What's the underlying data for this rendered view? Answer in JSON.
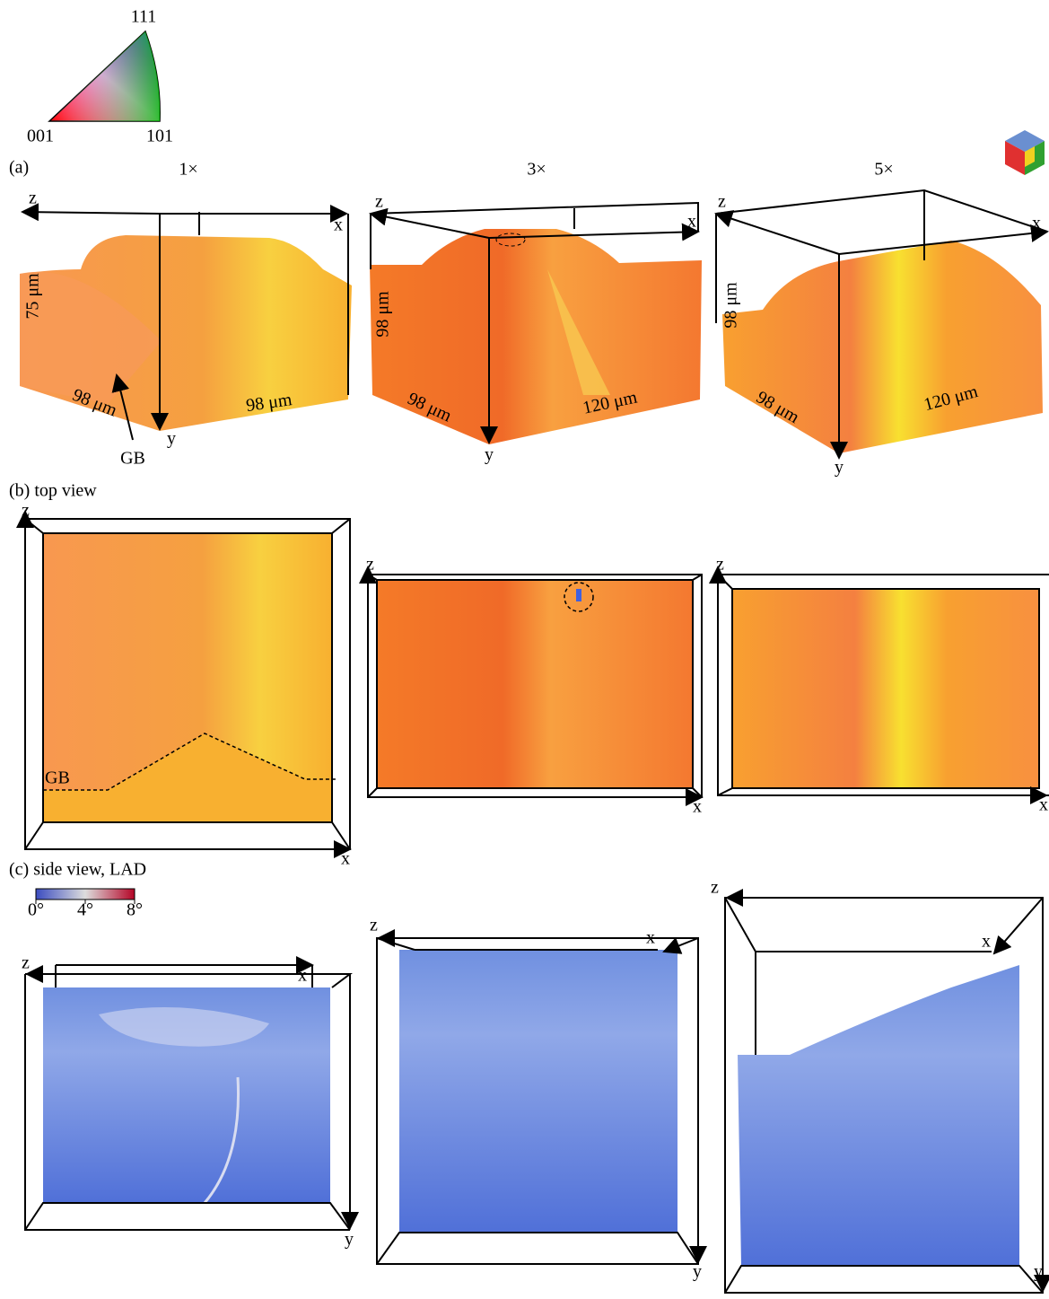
{
  "ipf_legend": {
    "corners": [
      "111",
      "001",
      "101"
    ]
  },
  "panel_a": {
    "label": "(a)",
    "columns": [
      {
        "title": "1×",
        "axes": [
          "z",
          "x",
          "y"
        ],
        "dims": [
          "75 μm",
          "98 μm",
          "98 μm"
        ],
        "annotation": "GB"
      },
      {
        "title": "3×",
        "axes": [
          "z",
          "x",
          "y"
        ],
        "dims": [
          "98 μm",
          "98 μm",
          "120 μm"
        ]
      },
      {
        "title": "5×",
        "axes": [
          "z",
          "x",
          "y"
        ],
        "dims": [
          "98 μm",
          "98 μm",
          "120 μm"
        ]
      }
    ]
  },
  "panel_b": {
    "label": "(b) top view",
    "views": [
      {
        "axes": [
          "z",
          "x"
        ],
        "annotation": "GB"
      },
      {
        "axes": [
          "z",
          "x"
        ]
      },
      {
        "axes": [
          "z",
          "x"
        ]
      }
    ]
  },
  "panel_c": {
    "label": "(c) side view, LAD",
    "colorbar": {
      "range": [
        0,
        8
      ],
      "ticks": [
        {
          "value": 0,
          "label": "0°"
        },
        {
          "value": 4,
          "label": "4°"
        },
        {
          "value": 8,
          "label": "8°"
        }
      ]
    },
    "views": [
      {
        "axes": [
          "z",
          "x",
          "y"
        ]
      },
      {
        "axes": [
          "z",
          "x",
          "y"
        ]
      },
      {
        "axes": [
          "z",
          "x",
          "y"
        ]
      }
    ]
  }
}
